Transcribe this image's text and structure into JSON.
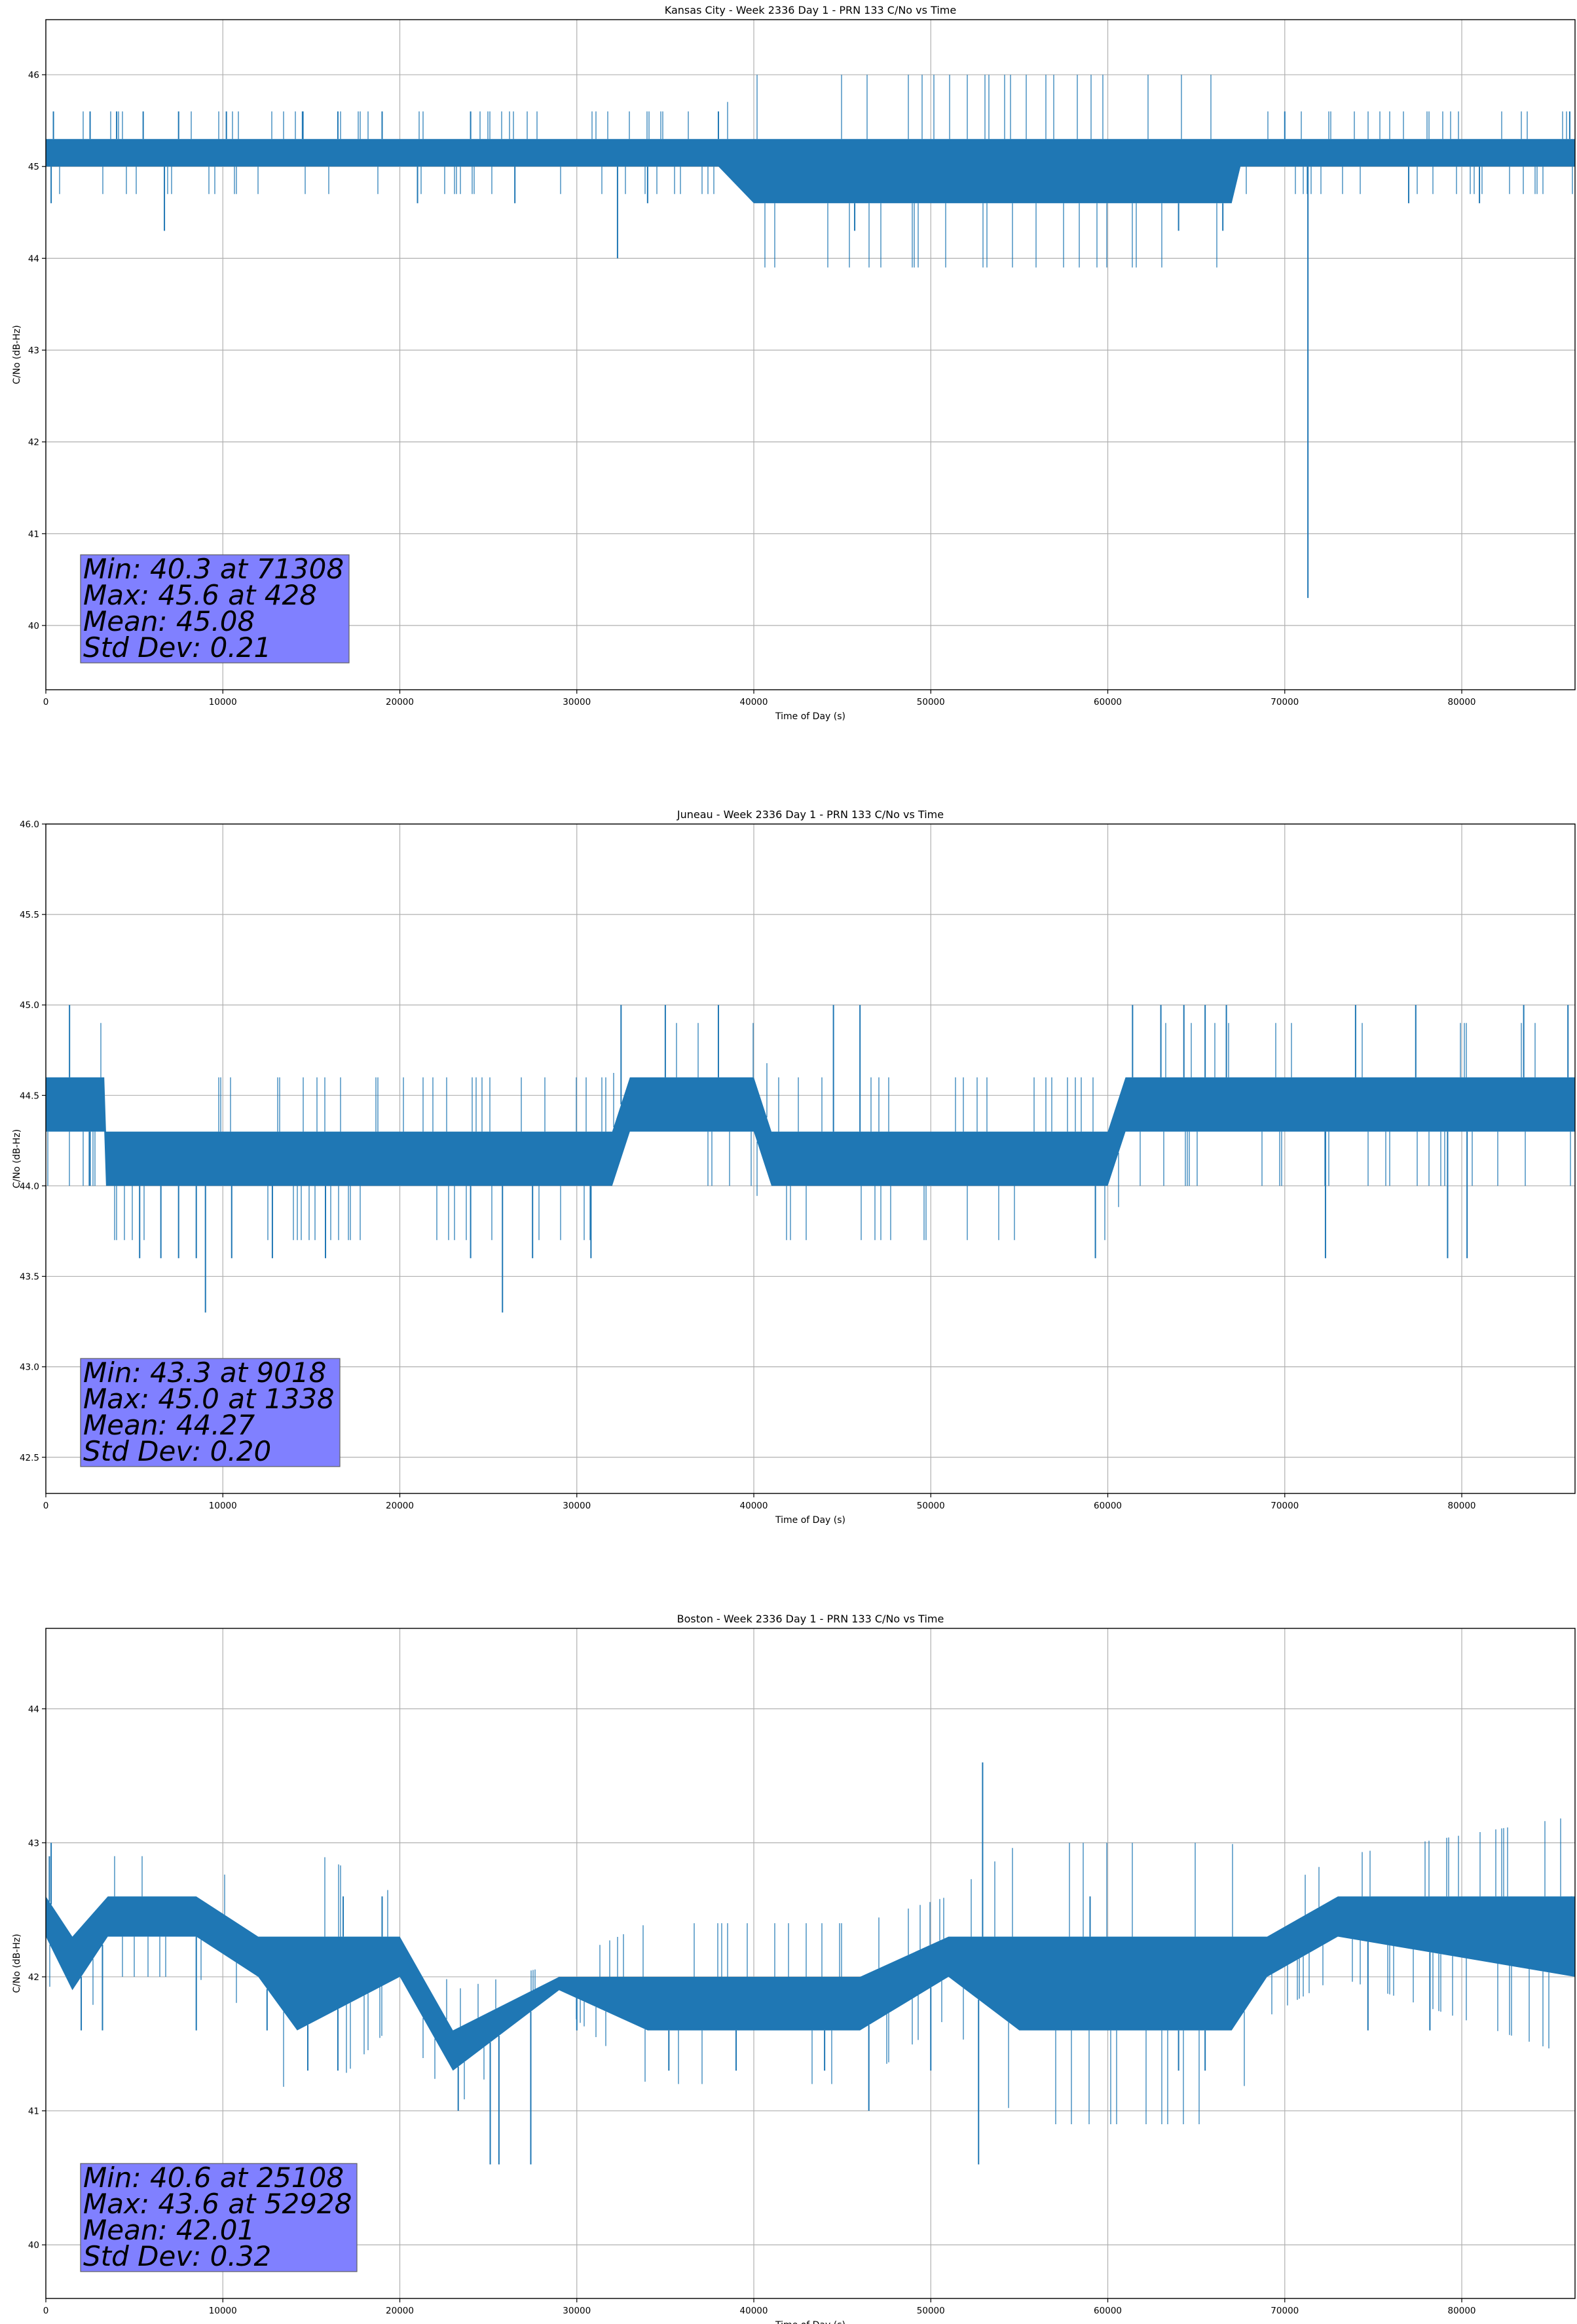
{
  "figure": {
    "chart_type": "line",
    "series_color": "#1f77b4",
    "stats_box_color": "#8080ff",
    "grid": true
  },
  "chart_data": [
    {
      "type": "line",
      "title": "Kansas City - Week 2336 Day 1 - PRN 133 C/No vs Time",
      "xlabel": "Time of Day (s)",
      "ylabel": "C/No (dB-Hz)",
      "xlim": [
        0,
        86400
      ],
      "ylim": [
        39.3,
        46.6
      ],
      "xticks": [
        0,
        10000,
        20000,
        30000,
        40000,
        50000,
        60000,
        70000,
        80000
      ],
      "xtick_labels": [
        "0",
        "10000",
        "20000",
        "30000",
        "40000",
        "50000",
        "60000",
        "70000",
        "80000"
      ],
      "yticks": [
        40,
        41,
        42,
        43,
        44,
        45,
        46
      ],
      "ytick_labels": [
        "40",
        "41",
        "42",
        "43",
        "44",
        "45",
        "46"
      ],
      "grid": true,
      "stats": [
        "Min: 40.3 at 71308",
        "Max: 45.6 at 428",
        "Mean: 45.08",
        "Std Dev: 0.21"
      ],
      "series": [
        {
          "color": "#1f77b4",
          "x": [
            0,
            6000,
            20000,
            31000,
            38000,
            40000,
            56000,
            67000,
            67500,
            80000,
            86400
          ],
          "y_low": [
            45.0,
            45.0,
            45.0,
            45.0,
            45.0,
            44.6,
            44.6,
            44.6,
            45.0,
            45.0,
            45.0
          ],
          "y_high": [
            45.3,
            45.3,
            45.3,
            45.3,
            45.3,
            45.3,
            45.3,
            45.3,
            45.3,
            45.3,
            45.3
          ],
          "spikes": [
            {
              "x": 300,
              "y": 44.6
            },
            {
              "x": 428,
              "y": 45.6
            },
            {
              "x": 2500,
              "y": 45.6
            },
            {
              "x": 4000,
              "y": 45.6
            },
            {
              "x": 5500,
              "y": 45.6
            },
            {
              "x": 6700,
              "y": 44.3
            },
            {
              "x": 7500,
              "y": 45.6
            },
            {
              "x": 10200,
              "y": 45.6
            },
            {
              "x": 14500,
              "y": 45.6
            },
            {
              "x": 16500,
              "y": 45.6
            },
            {
              "x": 19000,
              "y": 45.6
            },
            {
              "x": 21000,
              "y": 44.6
            },
            {
              "x": 24000,
              "y": 45.6
            },
            {
              "x": 26500,
              "y": 44.6
            },
            {
              "x": 32300,
              "y": 44.0
            },
            {
              "x": 34000,
              "y": 44.6
            },
            {
              "x": 38000,
              "y": 45.6
            },
            {
              "x": 45700,
              "y": 44.3
            },
            {
              "x": 48000,
              "y": 44.6
            },
            {
              "x": 64000,
              "y": 44.3
            },
            {
              "x": 66500,
              "y": 44.3
            },
            {
              "x": 70000,
              "y": 45.6
            },
            {
              "x": 71308,
              "y": 40.3
            },
            {
              "x": 77000,
              "y": 44.6
            },
            {
              "x": 81000,
              "y": 44.6
            },
            {
              "x": 86100,
              "y": 45.6
            }
          ]
        }
      ]
    },
    {
      "type": "line",
      "title": "Juneau - Week 2336 Day 1 - PRN 133 C/No vs Time",
      "xlabel": "Time of Day (s)",
      "ylabel": "C/No (dB-Hz)",
      "xlim": [
        0,
        86400
      ],
      "ylim": [
        42.3,
        46.0
      ],
      "xticks": [
        0,
        10000,
        20000,
        30000,
        40000,
        50000,
        60000,
        70000,
        80000
      ],
      "xtick_labels": [
        "0",
        "10000",
        "20000",
        "30000",
        "40000",
        "50000",
        "60000",
        "70000",
        "80000"
      ],
      "yticks": [
        42.5,
        43.0,
        43.5,
        44.0,
        44.5,
        45.0,
        45.5,
        46.0
      ],
      "ytick_labels": [
        "42.5",
        "43.0",
        "43.5",
        "44.0",
        "44.5",
        "45.0",
        "45.5",
        "46.0"
      ],
      "grid": true,
      "stats": [
        "Min: 43.3 at 9018",
        "Max: 45.0 at 1338",
        "Mean: 44.27",
        "Std Dev: 0.20"
      ],
      "series": [
        {
          "color": "#1f77b4",
          "x": [
            0,
            3300,
            3400,
            32000,
            33000,
            40000,
            41000,
            60000,
            61000,
            86400
          ],
          "y_low": [
            44.3,
            44.3,
            44.0,
            44.0,
            44.3,
            44.3,
            44.0,
            44.0,
            44.3,
            44.3
          ],
          "y_high": [
            44.6,
            44.6,
            44.3,
            44.3,
            44.6,
            44.6,
            44.3,
            44.3,
            44.6,
            44.6
          ],
          "spikes": [
            {
              "x": 1338,
              "y": 45.0
            },
            {
              "x": 2500,
              "y": 44.0
            },
            {
              "x": 5300,
              "y": 43.6
            },
            {
              "x": 6500,
              "y": 43.6
            },
            {
              "x": 7500,
              "y": 43.6
            },
            {
              "x": 8500,
              "y": 43.6
            },
            {
              "x": 9018,
              "y": 43.3
            },
            {
              "x": 10500,
              "y": 43.6
            },
            {
              "x": 12800,
              "y": 43.6
            },
            {
              "x": 15800,
              "y": 43.6
            },
            {
              "x": 24000,
              "y": 43.6
            },
            {
              "x": 25800,
              "y": 43.3
            },
            {
              "x": 27500,
              "y": 43.6
            },
            {
              "x": 30800,
              "y": 43.6
            },
            {
              "x": 32500,
              "y": 45.0
            },
            {
              "x": 35000,
              "y": 45.0
            },
            {
              "x": 38000,
              "y": 45.0
            },
            {
              "x": 44500,
              "y": 45.0
            },
            {
              "x": 46000,
              "y": 45.0
            },
            {
              "x": 59300,
              "y": 43.6
            },
            {
              "x": 61400,
              "y": 45.0
            },
            {
              "x": 63000,
              "y": 45.0
            },
            {
              "x": 64300,
              "y": 45.0
            },
            {
              "x": 65500,
              "y": 45.0
            },
            {
              "x": 66700,
              "y": 45.0
            },
            {
              "x": 72300,
              "y": 43.6
            },
            {
              "x": 74000,
              "y": 45.0
            },
            {
              "x": 77400,
              "y": 45.0
            },
            {
              "x": 79200,
              "y": 43.6
            },
            {
              "x": 80300,
              "y": 43.6
            },
            {
              "x": 83500,
              "y": 45.0
            },
            {
              "x": 86000,
              "y": 45.0
            }
          ]
        }
      ]
    },
    {
      "type": "line",
      "title": "Boston - Week 2336 Day 1 - PRN 133 C/No vs Time",
      "xlabel": "Time of Day (s)",
      "ylabel": "C/No (dB-Hz)",
      "xlim": [
        0,
        86400
      ],
      "ylim": [
        39.6,
        44.6
      ],
      "xticks": [
        0,
        10000,
        20000,
        30000,
        40000,
        50000,
        60000,
        70000,
        80000
      ],
      "xtick_labels": [
        "0",
        "10000",
        "20000",
        "30000",
        "40000",
        "50000",
        "60000",
        "70000",
        "80000"
      ],
      "yticks": [
        40,
        41,
        42,
        43,
        44
      ],
      "ytick_labels": [
        "40",
        "41",
        "42",
        "43",
        "44"
      ],
      "grid": true,
      "stats": [
        "Min: 40.6 at 25108",
        "Max: 43.6 at 52928",
        "Mean: 42.01",
        "Std Dev: 0.32"
      ],
      "series": [
        {
          "color": "#1f77b4",
          "x": [
            0,
            1500,
            3500,
            8500,
            12000,
            14200,
            20000,
            23000,
            29000,
            34000,
            46000,
            51000,
            55000,
            67000,
            69000,
            73000,
            86400
          ],
          "y_low": [
            42.3,
            41.9,
            42.3,
            42.3,
            42.0,
            41.6,
            42.0,
            41.3,
            41.9,
            41.6,
            41.6,
            42.0,
            41.6,
            41.6,
            42.0,
            42.3,
            42.0
          ],
          "y_high": [
            42.6,
            42.3,
            42.6,
            42.6,
            42.3,
            42.3,
            42.3,
            41.6,
            42.0,
            42.0,
            42.0,
            42.3,
            42.3,
            42.3,
            42.3,
            42.6,
            42.6
          ],
          "spikes": [
            {
              "x": 200,
              "y": 42.9
            },
            {
              "x": 300,
              "y": 43.0
            },
            {
              "x": 2000,
              "y": 41.6
            },
            {
              "x": 3200,
              "y": 41.6
            },
            {
              "x": 8500,
              "y": 41.6
            },
            {
              "x": 12500,
              "y": 41.6
            },
            {
              "x": 14800,
              "y": 41.3
            },
            {
              "x": 16500,
              "y": 41.3
            },
            {
              "x": 16800,
              "y": 42.6
            },
            {
              "x": 19000,
              "y": 42.6
            },
            {
              "x": 23300,
              "y": 41.0
            },
            {
              "x": 25108,
              "y": 40.6
            },
            {
              "x": 25600,
              "y": 40.6
            },
            {
              "x": 27400,
              "y": 40.6
            },
            {
              "x": 30000,
              "y": 41.6
            },
            {
              "x": 35200,
              "y": 41.3
            },
            {
              "x": 39000,
              "y": 41.3
            },
            {
              "x": 44000,
              "y": 41.3
            },
            {
              "x": 46500,
              "y": 41.0
            },
            {
              "x": 50000,
              "y": 41.3
            },
            {
              "x": 52700,
              "y": 40.6
            },
            {
              "x": 52928,
              "y": 43.6
            },
            {
              "x": 59000,
              "y": 42.6
            },
            {
              "x": 64000,
              "y": 41.3
            },
            {
              "x": 65500,
              "y": 41.3
            },
            {
              "x": 74700,
              "y": 41.6
            },
            {
              "x": 78200,
              "y": 41.6
            },
            {
              "x": 86200,
              "y": 42.6
            }
          ]
        }
      ]
    }
  ]
}
